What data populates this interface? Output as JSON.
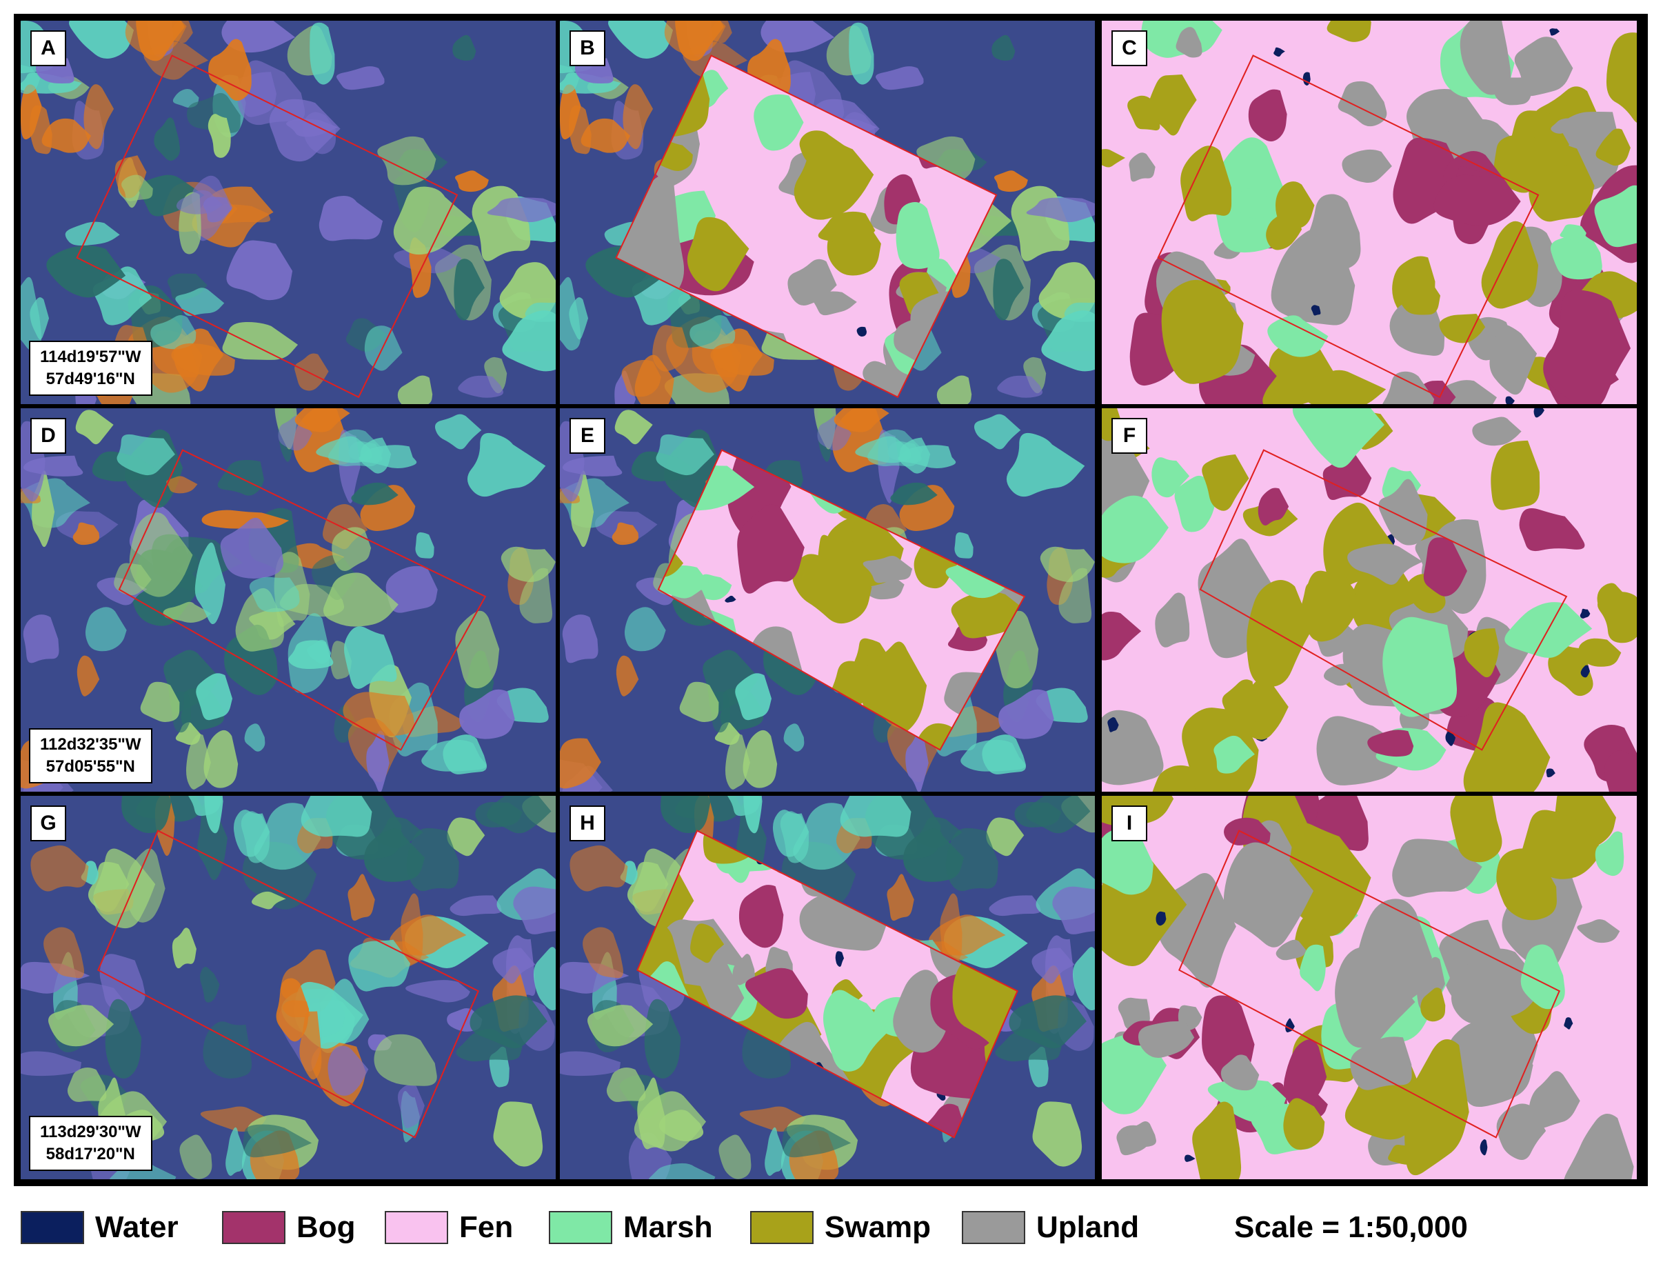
{
  "panels": [
    {
      "label": "A",
      "row": 0,
      "col": 0,
      "kind": "imagery",
      "coord_lon": "114d19'57\"W",
      "coord_lat": "57d49'16\"N"
    },
    {
      "label": "B",
      "row": 0,
      "col": 1,
      "kind": "partial"
    },
    {
      "label": "C",
      "row": 0,
      "col": 2,
      "kind": "classified"
    },
    {
      "label": "D",
      "row": 1,
      "col": 0,
      "kind": "imagery",
      "coord_lon": "112d32'35\"W",
      "coord_lat": "57d05'55\"N"
    },
    {
      "label": "E",
      "row": 1,
      "col": 1,
      "kind": "partial"
    },
    {
      "label": "F",
      "row": 1,
      "col": 2,
      "kind": "classified"
    },
    {
      "label": "G",
      "row": 2,
      "col": 0,
      "kind": "imagery",
      "coord_lon": "113d29'30\"W",
      "coord_lat": "58d17'20\"N"
    },
    {
      "label": "H",
      "row": 2,
      "col": 1,
      "kind": "partial"
    },
    {
      "label": "I",
      "row": 2,
      "col": 2,
      "kind": "classified"
    }
  ],
  "legend": [
    {
      "label": "Water",
      "color": "#0b1f5e"
    },
    {
      "label": "Bog",
      "color": "#a3336b"
    },
    {
      "label": "Fen",
      "color": "#f9c2ef"
    },
    {
      "label": "Marsh",
      "color": "#7fe8a6"
    },
    {
      "label": "Swamp",
      "color": "#a8a21a"
    },
    {
      "label": "Upland",
      "color": "#9a9a9a"
    }
  ],
  "scale_text": "Scale = 1:50,000",
  "colors": {
    "imagery_base": "#3b4a8c",
    "imagery_cyan": "#5fd6c0",
    "imagery_orange": "#e07a1e",
    "imagery_purple": "#7a6fc8",
    "outline": "#e02020"
  }
}
